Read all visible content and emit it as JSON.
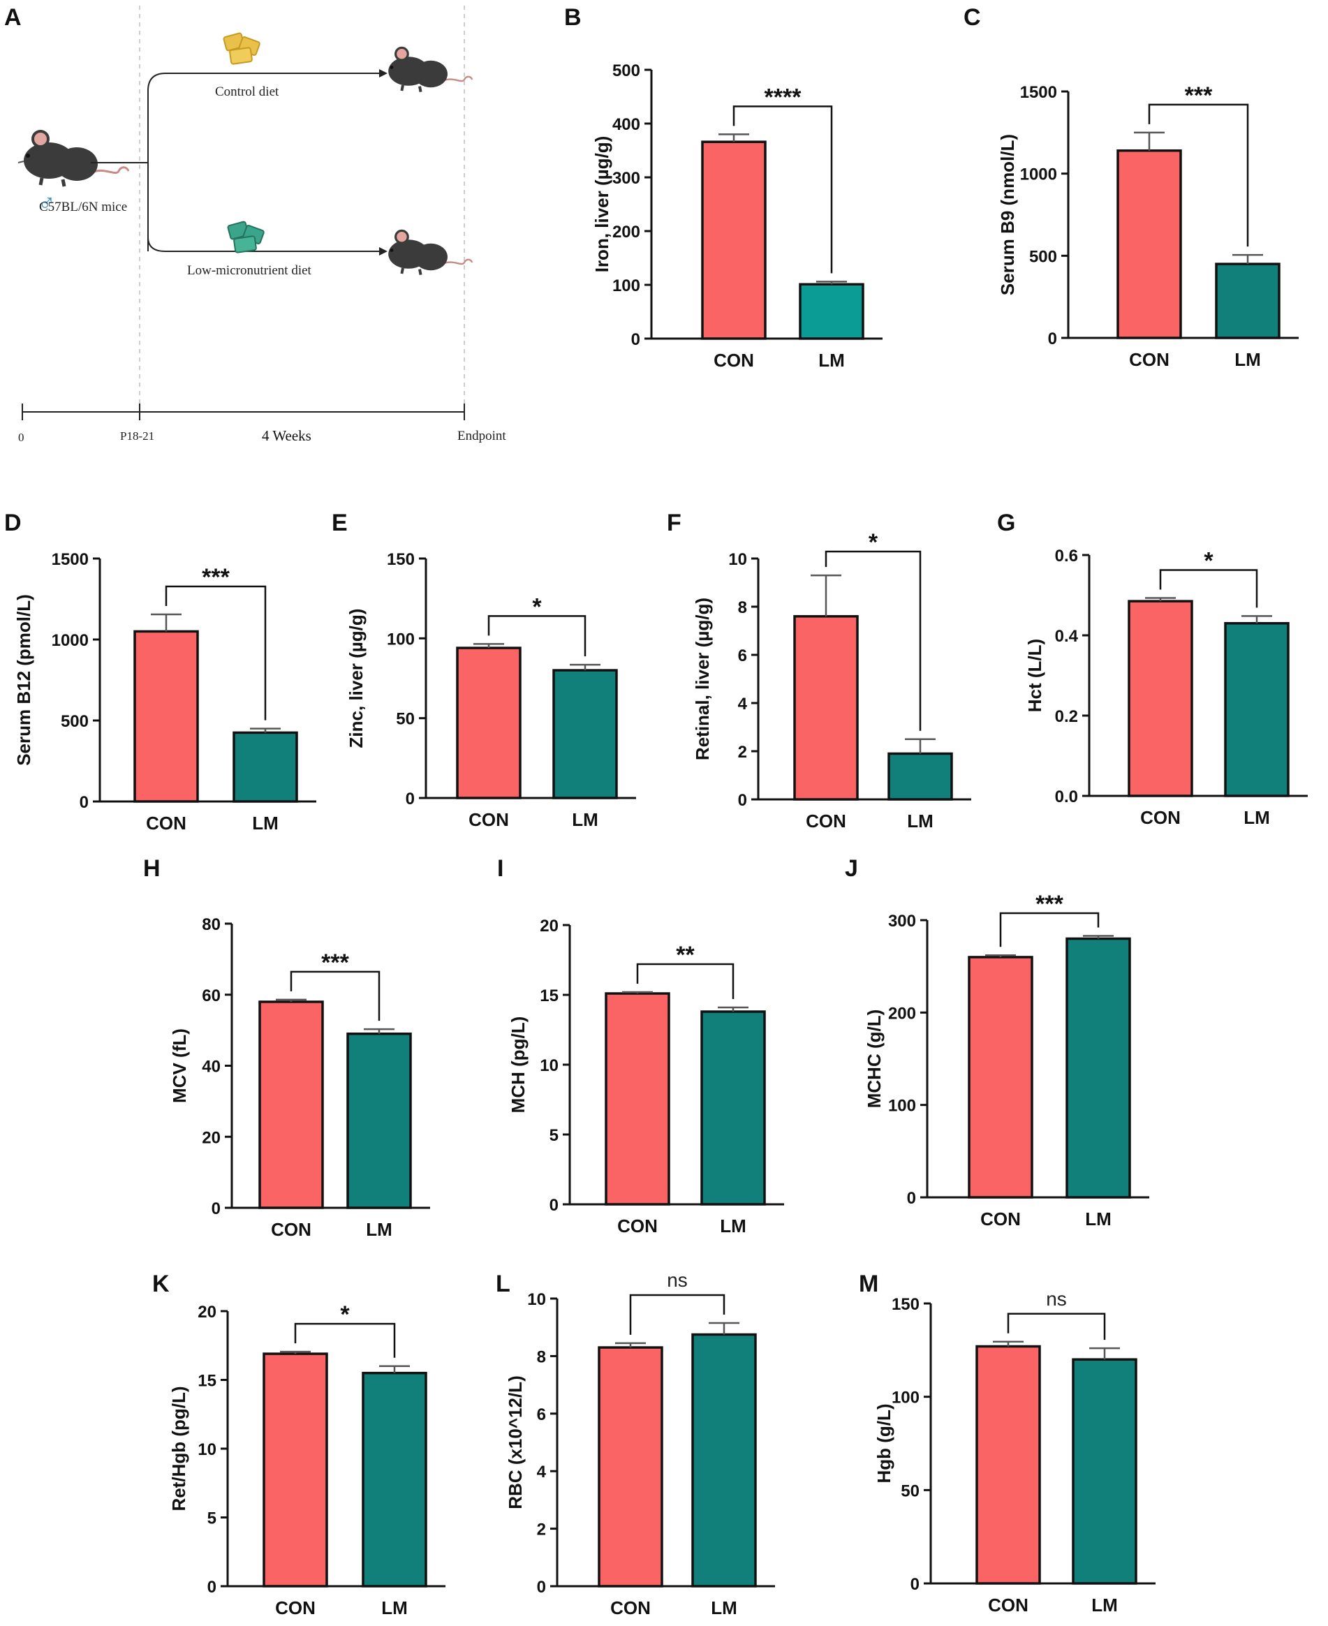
{
  "schematic": {
    "panel_label": "A",
    "mouse_strain": "C57BL/6N mice",
    "sex_symbol": "♂",
    "diet_top": "Control diet",
    "diet_bottom": "Low-micronutrient diet",
    "timeline": {
      "start": "0",
      "age": "P18-21",
      "duration": "4 Weeks",
      "end": "Endpoint"
    },
    "colors": {
      "control_food": "#e8c04a",
      "lm_food": "#3aa58a",
      "mouse": "#3b3b3b",
      "ear": "#e3a7a0"
    }
  },
  "colors": {
    "con": "#fa6464",
    "lm": "#11807a",
    "lm_b": "#0c9c96"
  },
  "chart_data": [
    {
      "id": "B",
      "type": "bar",
      "categories": [
        "CON",
        "LM"
      ],
      "values": [
        366,
        101
      ],
      "errors": [
        14,
        5
      ],
      "ylabel": "Iron, liver (µg/g)",
      "ylim": [
        0,
        500
      ],
      "yticks": [
        "0",
        "100",
        "200",
        "300",
        "400",
        "500"
      ],
      "significance": "****"
    },
    {
      "id": "C",
      "type": "bar",
      "categories": [
        "CON",
        "LM"
      ],
      "values": [
        1140,
        450
      ],
      "errors": [
        110,
        55
      ],
      "ylabel": "Serum B9 (nmol/L)",
      "ylim": [
        0,
        1500
      ],
      "yticks": [
        "0",
        "500",
        "1000",
        "1500"
      ],
      "significance": "***"
    },
    {
      "id": "D",
      "type": "bar",
      "categories": [
        "CON",
        "LM"
      ],
      "values": [
        1050,
        425
      ],
      "errors": [
        105,
        25
      ],
      "ylabel": "Serum B12 (pmol/L)",
      "ylim": [
        0,
        1500
      ],
      "yticks": [
        "0",
        "500",
        "1000",
        "1500"
      ],
      "significance": "***"
    },
    {
      "id": "E",
      "type": "bar",
      "categories": [
        "CON",
        "LM"
      ],
      "values": [
        94,
        80
      ],
      "errors": [
        2.5,
        3.5
      ],
      "ylabel": "Zinc, liver (µg/g)",
      "ylim": [
        0,
        150
      ],
      "yticks": [
        "0",
        "50",
        "100",
        "150"
      ],
      "significance": "*"
    },
    {
      "id": "F",
      "type": "bar",
      "categories": [
        "CON",
        "LM"
      ],
      "values": [
        7.6,
        1.9
      ],
      "errors": [
        1.7,
        0.6
      ],
      "ylabel": "Retinal, liver (µg/g)",
      "ylim": [
        0,
        10
      ],
      "yticks": [
        "0",
        "2",
        "4",
        "6",
        "8",
        "10"
      ],
      "significance": "*"
    },
    {
      "id": "G",
      "type": "bar",
      "categories": [
        "CON",
        "LM"
      ],
      "values": [
        0.485,
        0.43
      ],
      "errors": [
        0.008,
        0.018
      ],
      "ylabel": "Hct (L/L)",
      "ylim": [
        0,
        0.6
      ],
      "yticks": [
        "0.0",
        "0.2",
        "0.4",
        "0.6"
      ],
      "significance": "*"
    },
    {
      "id": "H",
      "type": "bar",
      "categories": [
        "CON",
        "LM"
      ],
      "values": [
        58,
        49
      ],
      "errors": [
        0.6,
        1.3
      ],
      "ylabel": "MCV (fL)",
      "ylim": [
        0,
        80
      ],
      "yticks": [
        "0",
        "20",
        "40",
        "60",
        "80"
      ],
      "significance": "***"
    },
    {
      "id": "I",
      "type": "bar",
      "categories": [
        "CON",
        "LM"
      ],
      "values": [
        15.1,
        13.8
      ],
      "errors": [
        0.1,
        0.3
      ],
      "ylabel": "MCH (pg/L)",
      "ylim": [
        0,
        20
      ],
      "yticks": [
        "0",
        "5",
        "10",
        "15",
        "20"
      ],
      "significance": "**"
    },
    {
      "id": "J",
      "type": "bar",
      "categories": [
        "CON",
        "LM"
      ],
      "values": [
        260,
        280
      ],
      "errors": [
        2,
        3
      ],
      "ylabel": "MCHC (g/L)",
      "ylim": [
        0,
        300
      ],
      "yticks": [
        "0",
        "100",
        "200",
        "300"
      ],
      "significance": "***"
    },
    {
      "id": "K",
      "type": "bar",
      "categories": [
        "CON",
        "LM"
      ],
      "values": [
        16.9,
        15.5
      ],
      "errors": [
        0.15,
        0.5
      ],
      "ylabel": "Ret/Hgb (pg/L)",
      "ylim": [
        0,
        20
      ],
      "yticks": [
        "0",
        "5",
        "10",
        "15",
        "20"
      ],
      "significance": "*"
    },
    {
      "id": "L",
      "type": "bar",
      "categories": [
        "CON",
        "LM"
      ],
      "values": [
        8.3,
        8.75
      ],
      "errors": [
        0.15,
        0.4
      ],
      "ylabel": "RBC (x10^12/L)",
      "ylim": [
        0,
        10
      ],
      "yticks": [
        "0",
        "2",
        "4",
        "6",
        "8",
        "10"
      ],
      "significance": "ns"
    },
    {
      "id": "M",
      "type": "bar",
      "categories": [
        "CON",
        "LM"
      ],
      "values": [
        127,
        120
      ],
      "errors": [
        2.5,
        6
      ],
      "ylabel": "Hgb (g/L)",
      "ylim": [
        0,
        150
      ],
      "yticks": [
        "0",
        "50",
        "100",
        "150"
      ],
      "significance": "ns"
    }
  ]
}
